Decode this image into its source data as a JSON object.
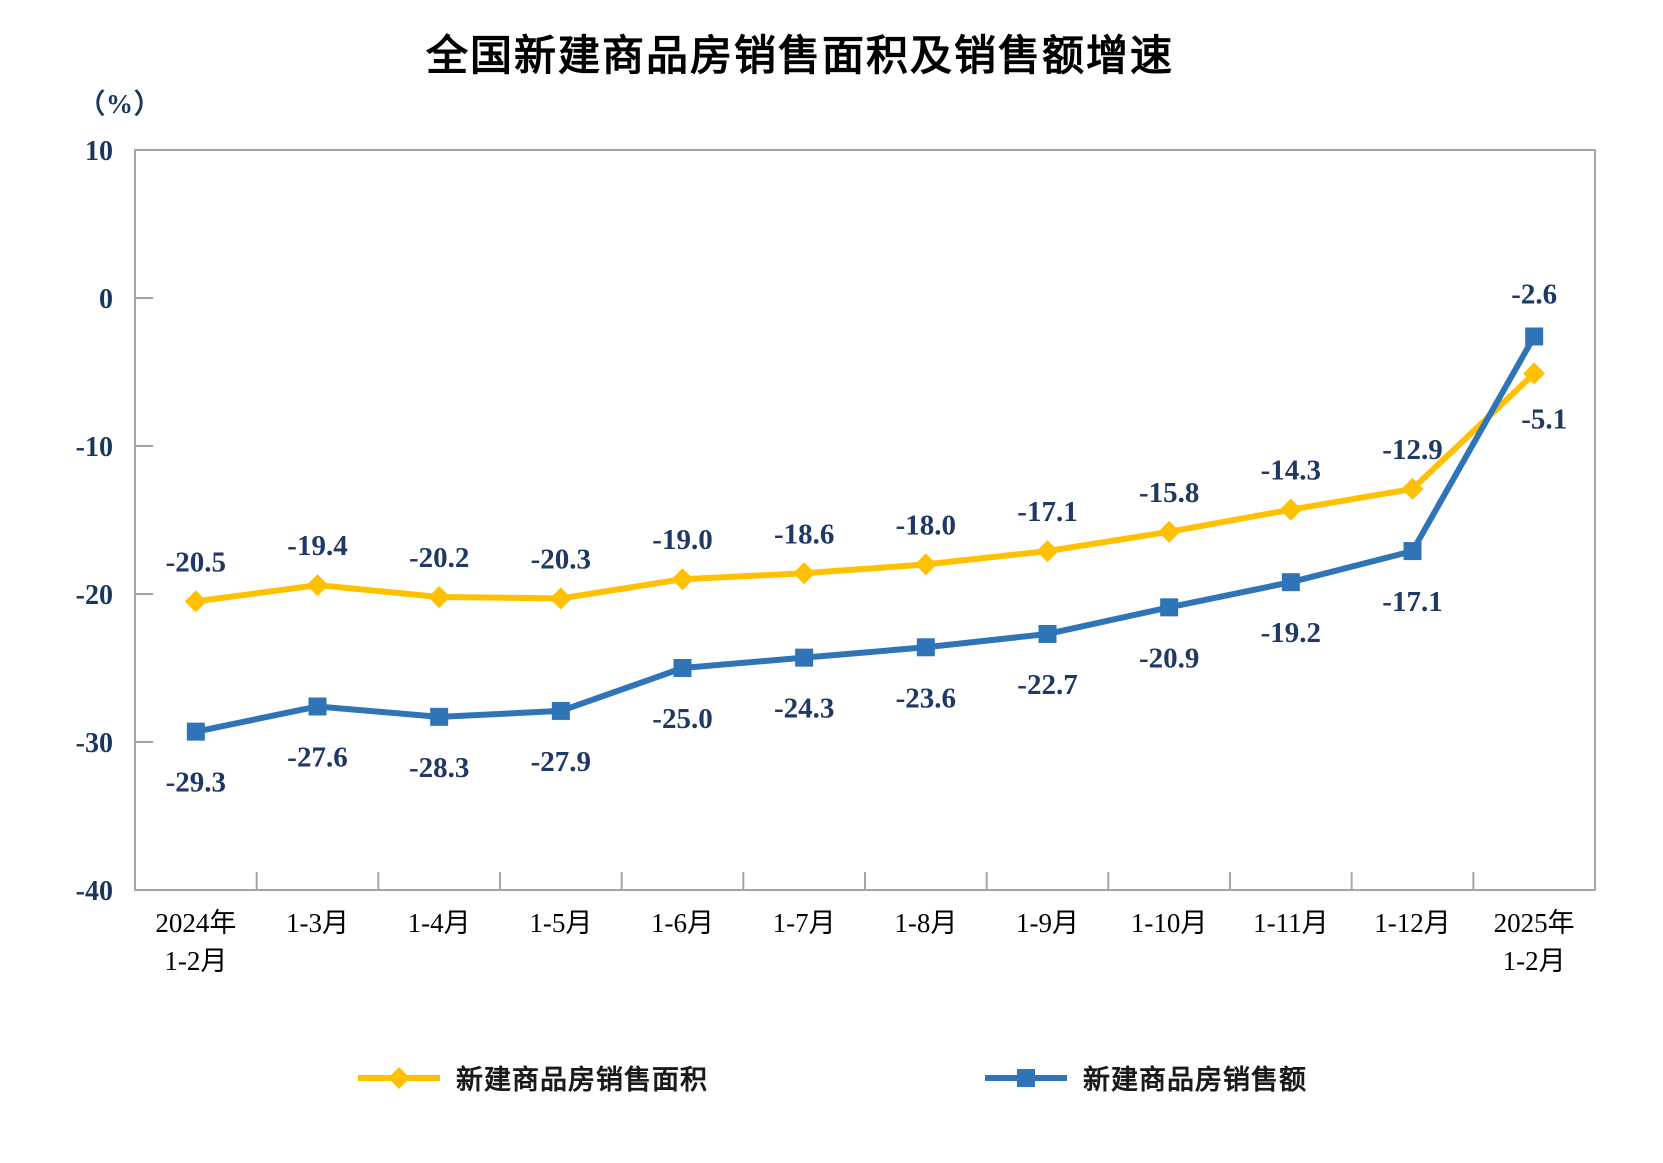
{
  "chart_data": {
    "type": "line",
    "title": "全国新建商品房销售面积及销售额增速",
    "ylabel": "（%）",
    "xlabel": "",
    "ylim": [
      -40,
      10
    ],
    "yticks": [
      10,
      0,
      -10,
      -20,
      -30,
      -40
    ],
    "grid": false,
    "legend_position": "bottom",
    "axis_color": "#A6A6A6",
    "data_label_color": "#1F3864",
    "y_tick_label_color": "#17375E",
    "x_tick_label_color": "#000000",
    "categories": [
      "2024年\n1-2月",
      "1-3月",
      "1-4月",
      "1-5月",
      "1-6月",
      "1-7月",
      "1-8月",
      "1-9月",
      "1-10月",
      "1-11月",
      "1-12月",
      "2025年\n1-2月"
    ],
    "series": [
      {
        "name": "新建商品房销售面积",
        "color": "#FFC000",
        "marker": "diamond",
        "values": [
          -20.5,
          -19.4,
          -20.2,
          -20.3,
          -19.0,
          -18.6,
          -18.0,
          -17.1,
          -15.8,
          -14.3,
          -12.9,
          -5.1
        ]
      },
      {
        "name": "新建商品房销售额",
        "color": "#2E74B6",
        "marker": "square",
        "values": [
          -29.3,
          -27.6,
          -28.3,
          -27.9,
          -25.0,
          -24.3,
          -23.6,
          -22.7,
          -20.9,
          -19.2,
          -17.1,
          -2.6
        ]
      }
    ]
  }
}
